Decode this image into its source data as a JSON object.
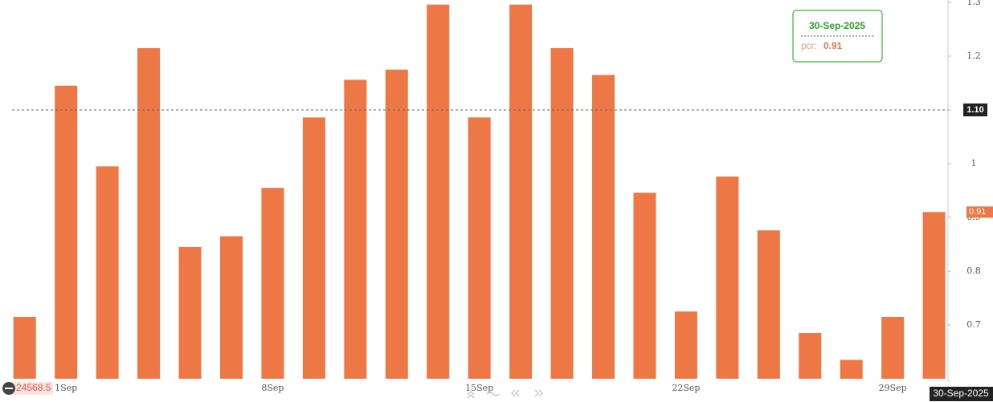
{
  "chart_data": {
    "type": "bar",
    "categories": [
      null,
      "1Sep",
      null,
      null,
      null,
      null,
      "8Sep",
      null,
      null,
      null,
      null,
      "15Sep",
      null,
      null,
      null,
      null,
      "22Sep",
      null,
      null,
      null,
      null,
      "29Sep",
      null
    ],
    "values": [
      0.715,
      1.145,
      0.995,
      1.215,
      0.845,
      0.865,
      0.955,
      1.086,
      1.156,
      1.175,
      1.296,
      1.086,
      1.296,
      1.215,
      1.165,
      0.946,
      0.725,
      0.976,
      0.876,
      0.685,
      0.635,
      0.715,
      0.91
    ],
    "color": "#ed7745",
    "ylim": [
      0.6,
      1.3
    ],
    "yticks": [
      0.7,
      0.8,
      0.9,
      1,
      1.1,
      1.2,
      1.3
    ],
    "crosshair": {
      "y": {
        "value": 1.1,
        "label": "1.10"
      },
      "x_label": "30-Sep-2025"
    },
    "last_value": {
      "value": 0.91,
      "label": "0.91"
    },
    "tooltip": {
      "date": "30-Sep-2025",
      "name": "pcr:",
      "value": "0.91"
    },
    "price_label": "24568.5"
  }
}
